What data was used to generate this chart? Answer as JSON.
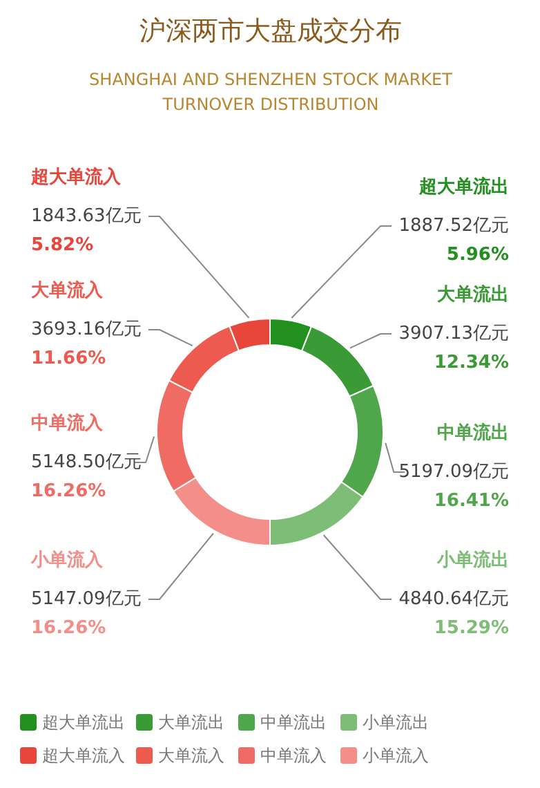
{
  "chart_data": {
    "type": "donut",
    "title": "沪深两市大盘成交分布",
    "subtitle": "SHANGHAI AND SHENZHEN STOCK MARKET\nTURNOVER DISTRIBUTION",
    "categories": [
      "超大单流出",
      "大单流出",
      "中单流出",
      "小单流出",
      "小单流入",
      "中单流入",
      "大单流入",
      "超大单流入"
    ],
    "values": [
      1887.52,
      3907.13,
      5197.09,
      4840.64,
      5147.09,
      5148.5,
      3693.16,
      1843.63
    ],
    "colors": [
      "#22901f",
      "#3a9a36",
      "#4fa64b",
      "#7dbd76",
      "#f48e88",
      "#f06b63",
      "#ed5a50",
      "#e8463b"
    ],
    "value_labels": [
      "1887.52亿元",
      "3907.13亿元",
      "5197.09亿元",
      "4840.64亿元",
      "5147.09亿元",
      "5148.50亿元",
      "3693.16亿元",
      "1843.63亿元"
    ],
    "annotations": [
      "5.96%",
      "12.34%",
      "16.41%",
      "15.29%",
      "16.26%",
      "16.26%",
      "11.66%",
      "5.82%"
    ],
    "legend": "bottom"
  }
}
